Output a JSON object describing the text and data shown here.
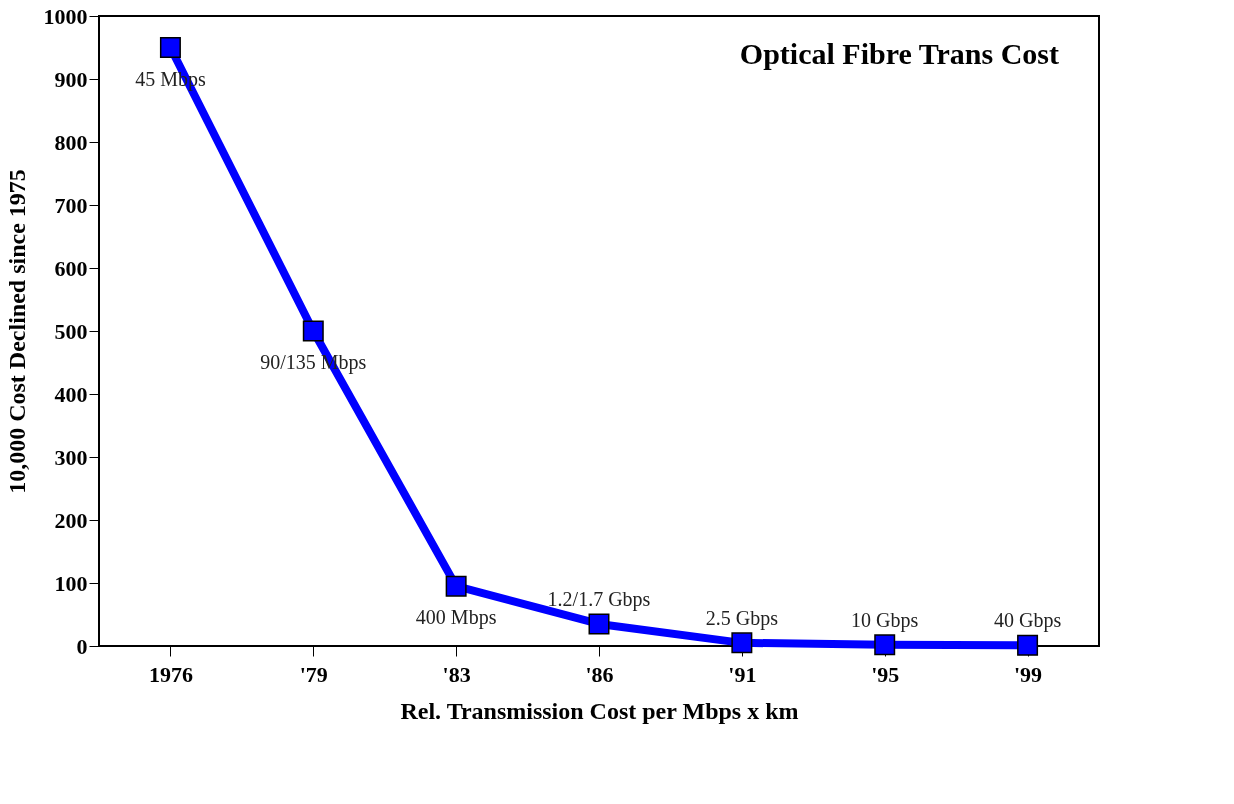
{
  "chart_data": {
    "type": "line",
    "title": "Optical Fibre Trans Cost",
    "xlabel": "Rel. Transmission Cost per Mbps x km",
    "ylabel": "10,000 Cost Declined since 1975",
    "categories": [
      "1976",
      "'79",
      "'83",
      "'86",
      "'91",
      "'95",
      "'99"
    ],
    "series": [
      {
        "color": "#0000ff",
        "values": [
          950,
          500,
          95,
          35,
          5,
          2,
          1
        ]
      }
    ],
    "ylim": [
      0,
      1000
    ],
    "yticks": [
      0,
      100,
      200,
      300,
      400,
      500,
      600,
      700,
      800,
      900,
      {
        "value": 1000,
        "label": "1000"
      }
    ],
    "marker": "square",
    "line_style": "solid",
    "grid": false,
    "annotations": [
      {
        "text": "45 Mbps",
        "x": "1976",
        "y": 950
      },
      {
        "text": "90/135 Mbps",
        "x": "'79",
        "y": 500
      },
      {
        "text": "400 Mbps",
        "x": "'83",
        "y": 95
      },
      {
        "text": "1.2/1.7 Gbps",
        "x": "'86",
        "y": 35
      },
      {
        "text": "2.5 Gbps",
        "x": "'91",
        "y": 5
      },
      {
        "text": "10 Gbps",
        "x": "'95",
        "y": 2
      },
      {
        "text": "40 Gbps",
        "x": "'99",
        "y": 1
      }
    ]
  }
}
